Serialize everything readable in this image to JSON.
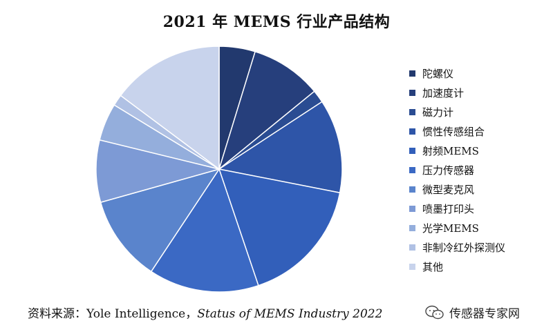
{
  "chart_data": {
    "type": "pie",
    "title": "2021 年 MEMS 行业产品结构",
    "start_angle_deg": 0,
    "direction": "clockwise",
    "slices": [
      {
        "name": "陀螺仪",
        "value": 4.8,
        "color": "#22396e"
      },
      {
        "name": "加速度计",
        "value": 9.5,
        "color": "#263f7c"
      },
      {
        "name": "磁力计",
        "value": 1.7,
        "color": "#2a4c92"
      },
      {
        "name": "惯性传感组合",
        "value": 12.5,
        "color": "#2e55a8"
      },
      {
        "name": "射频MEMS",
        "value": 17.0,
        "color": "#325fba"
      },
      {
        "name": "压力传感器",
        "value": 14.7,
        "color": "#3b69c4"
      },
      {
        "name": "微型麦克风",
        "value": 11.5,
        "color": "#5a84cc"
      },
      {
        "name": "喷墨打印头",
        "value": 8.3,
        "color": "#7d9ad5"
      },
      {
        "name": "光学MEMS",
        "value": 5.0,
        "color": "#94aedc"
      },
      {
        "name": "非制冷红外探测仪",
        "value": 1.5,
        "color": "#b0c1e4"
      },
      {
        "name": "其他",
        "value": 15.0,
        "color": "#c8d3ec"
      }
    ]
  },
  "source": {
    "prefix": "资料来源：Yole Intelligence，",
    "publication": "Status of MEMS Industry 2022"
  },
  "watermark": {
    "text": "传感器专家网",
    "icon": "wechat-icon"
  }
}
